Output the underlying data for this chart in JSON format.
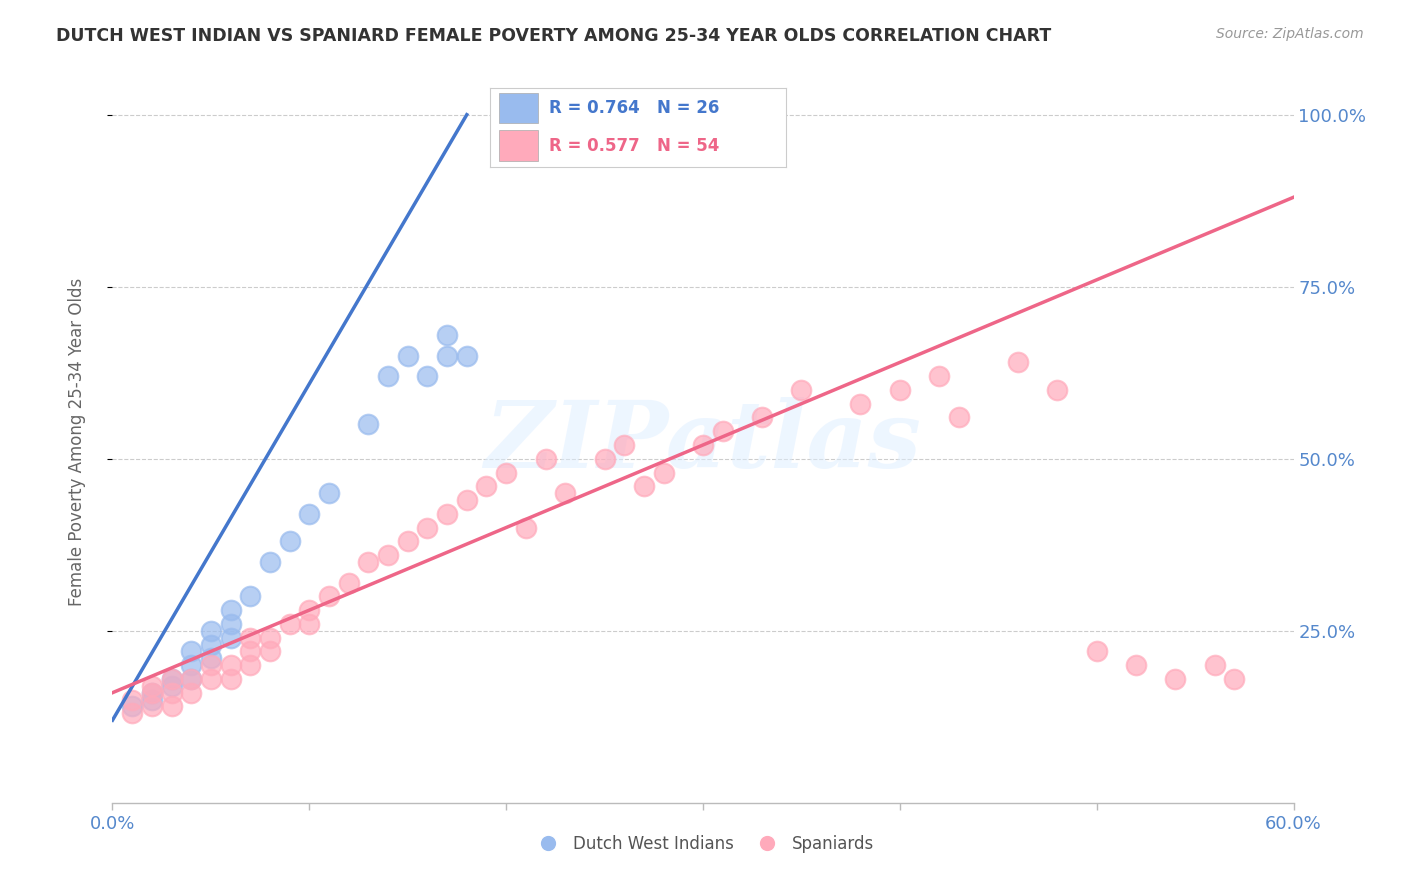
{
  "title": "DUTCH WEST INDIAN VS SPANIARD FEMALE POVERTY AMONG 25-34 YEAR OLDS CORRELATION CHART",
  "source": "Source: ZipAtlas.com",
  "xmin": 0.0,
  "xmax": 0.6,
  "ymin": 0.0,
  "ymax": 1.05,
  "watermark_text": "ZIPatlas",
  "blue_dot_color": "#99BBEE",
  "pink_dot_color": "#FFAABB",
  "blue_line_color": "#4477CC",
  "pink_line_color": "#EE6688",
  "legend_blue_r": "R = 0.764",
  "legend_blue_n": "N = 26",
  "legend_pink_r": "R = 0.577",
  "legend_pink_n": "N = 54",
  "legend_label_blue": "Dutch West Indians",
  "legend_label_pink": "Spaniards",
  "axis_tick_color": "#5588CC",
  "ylabel_text": "Female Poverty Among 25-34 Year Olds",
  "bg_color": "#FFFFFF",
  "grid_color": "#CCCCCC",
  "title_color": "#333333",
  "blue_x": [
    0.01,
    0.02,
    0.02,
    0.03,
    0.03,
    0.04,
    0.04,
    0.04,
    0.05,
    0.05,
    0.05,
    0.06,
    0.06,
    0.06,
    0.07,
    0.08,
    0.09,
    0.1,
    0.11,
    0.13,
    0.14,
    0.15,
    0.16,
    0.17,
    0.17,
    0.18
  ],
  "blue_y": [
    0.14,
    0.15,
    0.16,
    0.17,
    0.18,
    0.18,
    0.2,
    0.22,
    0.21,
    0.23,
    0.25,
    0.24,
    0.26,
    0.28,
    0.3,
    0.35,
    0.38,
    0.42,
    0.45,
    0.55,
    0.62,
    0.65,
    0.62,
    0.65,
    0.68,
    0.65
  ],
  "pink_x": [
    0.01,
    0.01,
    0.02,
    0.02,
    0.02,
    0.03,
    0.03,
    0.03,
    0.04,
    0.04,
    0.05,
    0.05,
    0.06,
    0.06,
    0.07,
    0.07,
    0.07,
    0.08,
    0.08,
    0.09,
    0.1,
    0.1,
    0.11,
    0.12,
    0.13,
    0.14,
    0.15,
    0.16,
    0.17,
    0.18,
    0.19,
    0.2,
    0.21,
    0.22,
    0.23,
    0.25,
    0.26,
    0.27,
    0.28,
    0.3,
    0.31,
    0.33,
    0.35,
    0.38,
    0.4,
    0.42,
    0.43,
    0.46,
    0.48,
    0.5,
    0.52,
    0.54,
    0.56,
    0.57
  ],
  "pink_y": [
    0.13,
    0.15,
    0.14,
    0.16,
    0.17,
    0.14,
    0.16,
    0.18,
    0.16,
    0.18,
    0.18,
    0.2,
    0.18,
    0.2,
    0.2,
    0.22,
    0.24,
    0.22,
    0.24,
    0.26,
    0.26,
    0.28,
    0.3,
    0.32,
    0.35,
    0.36,
    0.38,
    0.4,
    0.42,
    0.44,
    0.46,
    0.48,
    0.4,
    0.5,
    0.45,
    0.5,
    0.52,
    0.46,
    0.48,
    0.52,
    0.54,
    0.56,
    0.6,
    0.58,
    0.6,
    0.62,
    0.56,
    0.64,
    0.6,
    0.22,
    0.2,
    0.18,
    0.2,
    0.18
  ],
  "blue_line_x0": 0.0,
  "blue_line_y0": 0.12,
  "blue_line_x1": 0.18,
  "blue_line_y1": 1.0,
  "pink_line_x0": 0.0,
  "pink_line_y0": 0.16,
  "pink_line_x1": 0.6,
  "pink_line_y1": 0.88
}
